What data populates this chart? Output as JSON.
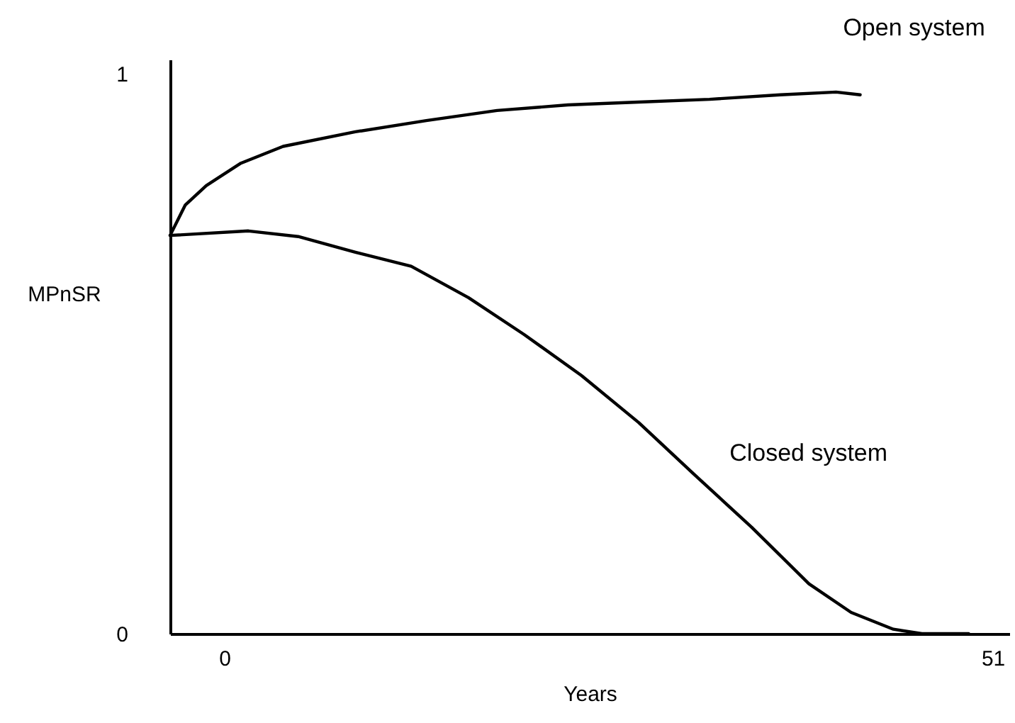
{
  "chart_data": {
    "type": "line",
    "xlabel": "Years",
    "ylabel": "MPnSR",
    "xlim": [
      -3.6,
      52.1
    ],
    "ylim": [
      0,
      1.025
    ],
    "xticks": [
      0,
      51
    ],
    "yticks": [
      0,
      1
    ],
    "grid": false,
    "legend": false,
    "marker": "none",
    "line_style": "solid",
    "series": [
      {
        "name": "Open system",
        "color": "#000000",
        "x": [
          -3.6,
          -2.6,
          -1.2,
          1.1,
          3.9,
          8.7,
          13.4,
          18.1,
          22.8,
          27.5,
          32.2,
          36.9,
          40.6,
          42.2
        ],
        "values": [
          0.711,
          0.765,
          0.8,
          0.84,
          0.87,
          0.896,
          0.916,
          0.934,
          0.944,
          0.949,
          0.954,
          0.962,
          0.967,
          0.962
        ]
      },
      {
        "name": "Closed system",
        "color": "#000000",
        "x": [
          -3.6,
          1.6,
          4.9,
          8.7,
          12.4,
          16.2,
          19.9,
          23.7,
          27.5,
          31.2,
          35.0,
          38.8,
          41.6,
          44.4,
          46.3,
          49.4
        ],
        "values": [
          0.711,
          0.719,
          0.709,
          0.681,
          0.656,
          0.6,
          0.534,
          0.461,
          0.377,
          0.284,
          0.19,
          0.089,
          0.038,
          0.008,
          0,
          0
        ]
      }
    ]
  }
}
